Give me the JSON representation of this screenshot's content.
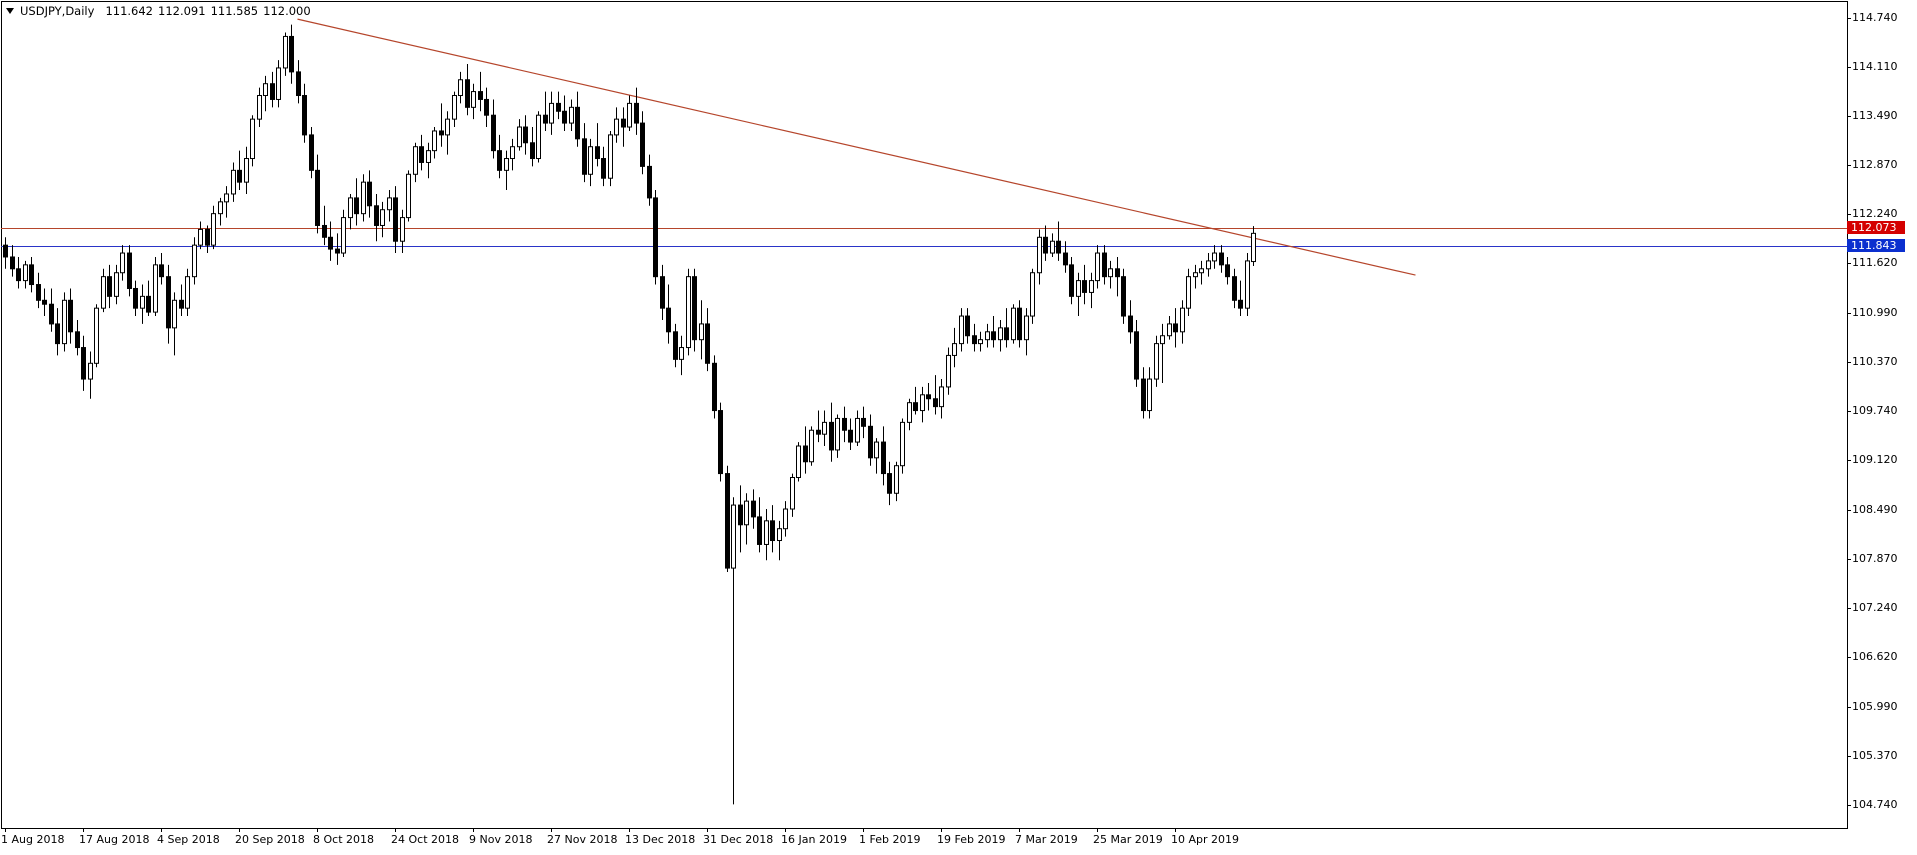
{
  "header": {
    "symbol": "USDJPY,Daily",
    "open": "111.642",
    "high": "112.091",
    "low": "111.585",
    "close": "112.000"
  },
  "price_tags": [
    {
      "label": "112.073",
      "value": 112.073,
      "color": "#d40000",
      "line_color": "#b5452b"
    },
    {
      "label": "111.843",
      "value": 111.843,
      "color": "#0b2fcf",
      "line_color": "#2a34c8"
    }
  ],
  "colors": {
    "up": "#ffffff",
    "down": "#000000",
    "outline": "#000000",
    "trendline": "#b5452b",
    "frame": "#000000"
  },
  "chart_data": {
    "type": "candlestick",
    "title": "USDJPY,Daily",
    "ylim": [
      104.45,
      114.95
    ],
    "y_ticks": [
      "114.740",
      "114.110",
      "113.490",
      "112.870",
      "112.240",
      "111.620",
      "110.990",
      "110.370",
      "109.740",
      "109.120",
      "108.490",
      "107.870",
      "107.240",
      "106.620",
      "105.990",
      "105.370",
      "104.740"
    ],
    "x_ticks": [
      {
        "label": "1 Aug 2018",
        "bar": 0
      },
      {
        "label": "17 Aug 2018",
        "bar": 12
      },
      {
        "label": "4 Sep 2018",
        "bar": 24
      },
      {
        "label": "20 Sep 2018",
        "bar": 36
      },
      {
        "label": "8 Oct 2018",
        "bar": 48
      },
      {
        "label": "24 Oct 2018",
        "bar": 60
      },
      {
        "label": "9 Nov 2018",
        "bar": 72
      },
      {
        "label": "27 Nov 2018",
        "bar": 84
      },
      {
        "label": "13 Dec 2018",
        "bar": 96
      },
      {
        "label": "31 Dec 2018",
        "bar": 108
      },
      {
        "label": "16 Jan 2019",
        "bar": 120
      },
      {
        "label": "1 Feb 2019",
        "bar": 132
      },
      {
        "label": "19 Feb 2019",
        "bar": 144
      },
      {
        "label": "7 Mar 2019",
        "bar": 156
      },
      {
        "label": "25 Mar 2019",
        "bar": 168
      },
      {
        "label": "10 Apr 2019",
        "bar": 180
      }
    ],
    "horizontal_lines": [
      112.073,
      111.843
    ],
    "trendline": {
      "from": {
        "bar": 45,
        "price": 114.72
      },
      "to": {
        "bar": 217,
        "price": 111.47
      }
    },
    "candles": [
      [
        111.85,
        111.95,
        111.55,
        111.7
      ],
      [
        111.7,
        111.85,
        111.45,
        111.55
      ],
      [
        111.55,
        111.7,
        111.3,
        111.4
      ],
      [
        111.4,
        111.65,
        111.3,
        111.6
      ],
      [
        111.6,
        111.7,
        111.25,
        111.35
      ],
      [
        111.35,
        111.5,
        111.05,
        111.15
      ],
      [
        111.15,
        111.3,
        110.95,
        111.1
      ],
      [
        111.1,
        111.3,
        110.75,
        110.85
      ],
      [
        110.85,
        111.05,
        110.45,
        110.6
      ],
      [
        110.6,
        111.25,
        110.5,
        111.15
      ],
      [
        111.15,
        111.3,
        110.6,
        110.75
      ],
      [
        110.75,
        110.9,
        110.45,
        110.55
      ],
      [
        110.55,
        110.7,
        110.0,
        110.15
      ],
      [
        110.15,
        110.5,
        109.9,
        110.35
      ],
      [
        110.35,
        111.1,
        110.3,
        111.05
      ],
      [
        111.05,
        111.55,
        111.0,
        111.45
      ],
      [
        111.45,
        111.6,
        111.05,
        111.2
      ],
      [
        111.2,
        111.6,
        111.1,
        111.5
      ],
      [
        111.5,
        111.85,
        111.4,
        111.75
      ],
      [
        111.75,
        111.85,
        111.2,
        111.3
      ],
      [
        111.3,
        111.4,
        110.95,
        111.05
      ],
      [
        111.05,
        111.35,
        110.85,
        111.2
      ],
      [
        111.2,
        111.4,
        110.95,
        111.0
      ],
      [
        111.0,
        111.7,
        110.95,
        111.6
      ],
      [
        111.6,
        111.75,
        111.35,
        111.45
      ],
      [
        111.45,
        111.6,
        110.6,
        110.8
      ],
      [
        110.8,
        111.25,
        110.45,
        111.15
      ],
      [
        111.15,
        111.35,
        110.95,
        111.05
      ],
      [
        111.05,
        111.55,
        110.95,
        111.45
      ],
      [
        111.45,
        111.95,
        111.35,
        111.85
      ],
      [
        111.85,
        112.15,
        111.8,
        112.05
      ],
      [
        112.05,
        112.1,
        111.75,
        111.85
      ],
      [
        111.85,
        112.35,
        111.8,
        112.25
      ],
      [
        112.25,
        112.45,
        112.1,
        112.4
      ],
      [
        112.4,
        112.6,
        112.2,
        112.5
      ],
      [
        112.5,
        112.9,
        112.4,
        112.8
      ],
      [
        112.8,
        113.05,
        112.55,
        112.65
      ],
      [
        112.65,
        113.1,
        112.5,
        112.95
      ],
      [
        112.95,
        113.5,
        112.85,
        113.45
      ],
      [
        113.45,
        113.85,
        113.35,
        113.75
      ],
      [
        113.75,
        114.0,
        113.55,
        113.9
      ],
      [
        113.9,
        114.05,
        113.6,
        113.7
      ],
      [
        113.7,
        114.2,
        113.6,
        114.1
      ],
      [
        114.1,
        114.55,
        114.0,
        114.5
      ],
      [
        114.5,
        114.65,
        113.9,
        114.05
      ],
      [
        114.05,
        114.2,
        113.65,
        113.75
      ],
      [
        113.75,
        113.9,
        113.15,
        113.25
      ],
      [
        113.25,
        113.35,
        112.7,
        112.8
      ],
      [
        112.8,
        113.0,
        112.0,
        112.1
      ],
      [
        112.1,
        112.35,
        111.85,
        111.95
      ],
      [
        111.95,
        112.15,
        111.65,
        111.8
      ],
      [
        111.8,
        112.0,
        111.6,
        111.75
      ],
      [
        111.75,
        112.3,
        111.7,
        112.2
      ],
      [
        112.2,
        112.5,
        112.05,
        112.45
      ],
      [
        112.45,
        112.7,
        112.1,
        112.25
      ],
      [
        112.25,
        112.75,
        112.15,
        112.65
      ],
      [
        112.65,
        112.8,
        112.2,
        112.35
      ],
      [
        112.35,
        112.5,
        111.9,
        112.1
      ],
      [
        112.1,
        112.4,
        111.95,
        112.3
      ],
      [
        112.3,
        112.55,
        112.15,
        112.45
      ],
      [
        112.45,
        112.6,
        111.75,
        111.9
      ],
      [
        111.9,
        112.3,
        111.75,
        112.2
      ],
      [
        112.2,
        112.8,
        112.15,
        112.75
      ],
      [
        112.75,
        113.15,
        112.65,
        113.1
      ],
      [
        113.1,
        113.25,
        112.8,
        112.9
      ],
      [
        112.9,
        113.15,
        112.7,
        113.05
      ],
      [
        113.05,
        113.35,
        112.95,
        113.3
      ],
      [
        113.3,
        113.65,
        113.1,
        113.25
      ],
      [
        113.25,
        113.55,
        113.0,
        113.45
      ],
      [
        113.45,
        113.8,
        113.35,
        113.75
      ],
      [
        113.75,
        114.05,
        113.65,
        113.95
      ],
      [
        113.95,
        114.15,
        113.5,
        113.6
      ],
      [
        113.6,
        113.9,
        113.45,
        113.8
      ],
      [
        113.8,
        114.05,
        113.55,
        113.7
      ],
      [
        113.7,
        113.85,
        113.35,
        113.5
      ],
      [
        113.5,
        113.7,
        112.95,
        113.05
      ],
      [
        113.05,
        113.25,
        112.7,
        112.8
      ],
      [
        112.8,
        113.05,
        112.55,
        112.95
      ],
      [
        112.95,
        113.2,
        112.8,
        113.1
      ],
      [
        113.1,
        113.45,
        113.05,
        113.35
      ],
      [
        113.35,
        113.5,
        113.0,
        113.15
      ],
      [
        113.15,
        113.35,
        112.85,
        112.95
      ],
      [
        112.95,
        113.55,
        112.9,
        113.5
      ],
      [
        113.5,
        113.8,
        113.3,
        113.4
      ],
      [
        113.4,
        113.8,
        113.25,
        113.65
      ],
      [
        113.65,
        113.8,
        113.45,
        113.55
      ],
      [
        113.55,
        113.75,
        113.3,
        113.4
      ],
      [
        113.4,
        113.7,
        113.3,
        113.6
      ],
      [
        113.6,
        113.8,
        113.1,
        113.2
      ],
      [
        113.2,
        113.4,
        112.65,
        112.75
      ],
      [
        112.75,
        113.2,
        112.6,
        113.1
      ],
      [
        113.1,
        113.4,
        112.85,
        112.95
      ],
      [
        112.95,
        113.1,
        112.6,
        112.7
      ],
      [
        112.7,
        113.3,
        112.6,
        113.25
      ],
      [
        113.25,
        113.6,
        113.15,
        113.45
      ],
      [
        113.45,
        113.6,
        113.1,
        113.35
      ],
      [
        113.35,
        113.75,
        113.3,
        113.65
      ],
      [
        113.65,
        113.85,
        113.25,
        113.4
      ],
      [
        113.4,
        113.55,
        112.75,
        112.85
      ],
      [
        112.85,
        113.0,
        112.35,
        112.45
      ],
      [
        112.45,
        112.55,
        111.35,
        111.45
      ],
      [
        111.45,
        111.6,
        110.9,
        111.05
      ],
      [
        111.05,
        111.35,
        110.6,
        110.75
      ],
      [
        110.75,
        110.85,
        110.3,
        110.4
      ],
      [
        110.4,
        110.7,
        110.2,
        110.55
      ],
      [
        110.55,
        111.55,
        110.45,
        111.45
      ],
      [
        111.45,
        111.55,
        110.5,
        110.65
      ],
      [
        110.65,
        111.15,
        110.4,
        110.85
      ],
      [
        110.85,
        111.05,
        110.25,
        110.35
      ],
      [
        110.35,
        110.45,
        109.65,
        109.75
      ],
      [
        109.75,
        109.85,
        108.85,
        108.95
      ],
      [
        108.95,
        109.05,
        107.7,
        107.75
      ],
      [
        107.75,
        108.65,
        104.75,
        108.55
      ],
      [
        108.55,
        108.8,
        107.95,
        108.3
      ],
      [
        108.3,
        108.7,
        108.05,
        108.6
      ],
      [
        108.6,
        108.75,
        108.25,
        108.4
      ],
      [
        108.4,
        108.65,
        107.95,
        108.05
      ],
      [
        108.05,
        108.5,
        107.85,
        108.35
      ],
      [
        108.35,
        108.55,
        107.95,
        108.1
      ],
      [
        108.1,
        108.35,
        107.85,
        108.25
      ],
      [
        108.25,
        108.6,
        108.15,
        108.5
      ],
      [
        108.5,
        108.95,
        108.4,
        108.9
      ],
      [
        108.9,
        109.35,
        108.85,
        109.3
      ],
      [
        109.3,
        109.55,
        108.95,
        109.1
      ],
      [
        109.1,
        109.55,
        109.05,
        109.5
      ],
      [
        109.5,
        109.75,
        109.35,
        109.45
      ],
      [
        109.45,
        109.75,
        109.3,
        109.6
      ],
      [
        109.6,
        109.85,
        109.1,
        109.25
      ],
      [
        109.25,
        109.7,
        109.15,
        109.65
      ],
      [
        109.65,
        109.8,
        109.35,
        109.5
      ],
      [
        109.5,
        109.65,
        109.25,
        109.35
      ],
      [
        109.35,
        109.75,
        109.3,
        109.65
      ],
      [
        109.65,
        109.8,
        109.4,
        109.55
      ],
      [
        109.55,
        109.7,
        109.05,
        109.15
      ],
      [
        109.15,
        109.4,
        108.95,
        109.35
      ],
      [
        109.35,
        109.55,
        108.8,
        108.95
      ],
      [
        108.95,
        109.1,
        108.55,
        108.7
      ],
      [
        108.7,
        109.1,
        108.6,
        109.05
      ],
      [
        109.05,
        109.65,
        108.95,
        109.6
      ],
      [
        109.6,
        109.9,
        109.5,
        109.85
      ],
      [
        109.85,
        110.05,
        109.7,
        109.75
      ],
      [
        109.75,
        110.05,
        109.6,
        109.95
      ],
      [
        109.95,
        110.1,
        109.75,
        109.9
      ],
      [
        109.9,
        110.2,
        109.7,
        109.8
      ],
      [
        109.8,
        110.15,
        109.65,
        110.05
      ],
      [
        110.05,
        110.55,
        109.95,
        110.45
      ],
      [
        110.45,
        110.8,
        110.3,
        110.6
      ],
      [
        110.6,
        111.05,
        110.5,
        110.95
      ],
      [
        110.95,
        111.05,
        110.6,
        110.7
      ],
      [
        110.7,
        110.85,
        110.5,
        110.6
      ],
      [
        110.6,
        110.75,
        110.5,
        110.65
      ],
      [
        110.65,
        110.85,
        110.55,
        110.75
      ],
      [
        110.75,
        110.95,
        110.55,
        110.65
      ],
      [
        110.65,
        110.9,
        110.5,
        110.8
      ],
      [
        110.8,
        111.05,
        110.55,
        110.65
      ],
      [
        110.65,
        111.1,
        110.6,
        111.05
      ],
      [
        111.05,
        111.15,
        110.55,
        110.65
      ],
      [
        110.65,
        111.05,
        110.45,
        110.95
      ],
      [
        110.95,
        111.55,
        110.85,
        111.5
      ],
      [
        111.5,
        112.05,
        111.35,
        111.95
      ],
      [
        111.95,
        112.1,
        111.65,
        111.75
      ],
      [
        111.75,
        112.0,
        111.7,
        111.9
      ],
      [
        111.9,
        112.15,
        111.65,
        111.75
      ],
      [
        111.75,
        111.9,
        111.5,
        111.6
      ],
      [
        111.6,
        111.7,
        111.1,
        111.2
      ],
      [
        111.2,
        111.5,
        110.95,
        111.4
      ],
      [
        111.4,
        111.6,
        111.1,
        111.25
      ],
      [
        111.25,
        111.5,
        111.05,
        111.4
      ],
      [
        111.4,
        111.85,
        111.3,
        111.75
      ],
      [
        111.75,
        111.85,
        111.35,
        111.45
      ],
      [
        111.45,
        111.65,
        111.3,
        111.55
      ],
      [
        111.55,
        111.7,
        111.2,
        111.45
      ],
      [
        111.45,
        111.55,
        110.85,
        110.95
      ],
      [
        110.95,
        111.15,
        110.6,
        110.75
      ],
      [
        110.75,
        110.9,
        110.05,
        110.15
      ],
      [
        110.15,
        110.3,
        109.65,
        109.75
      ],
      [
        109.75,
        110.3,
        109.65,
        110.15
      ],
      [
        110.15,
        110.7,
        110.05,
        110.6
      ],
      [
        110.6,
        110.85,
        110.1,
        110.7
      ],
      [
        110.7,
        110.95,
        110.65,
        110.85
      ],
      [
        110.85,
        111.05,
        110.55,
        110.75
      ],
      [
        110.75,
        111.15,
        110.6,
        111.05
      ],
      [
        111.05,
        111.55,
        110.95,
        111.45
      ],
      [
        111.45,
        111.6,
        111.3,
        111.5
      ],
      [
        111.5,
        111.65,
        111.35,
        111.55
      ],
      [
        111.55,
        111.75,
        111.45,
        111.65
      ],
      [
        111.65,
        111.85,
        111.55,
        111.75
      ],
      [
        111.75,
        111.85,
        111.5,
        111.6
      ],
      [
        111.6,
        111.7,
        111.35,
        111.45
      ],
      [
        111.45,
        111.55,
        111.05,
        111.15
      ],
      [
        111.15,
        111.4,
        110.95,
        111.05
      ],
      [
        111.05,
        111.75,
        110.95,
        111.65
      ],
      [
        111.642,
        112.091,
        111.585,
        112.0
      ]
    ]
  }
}
